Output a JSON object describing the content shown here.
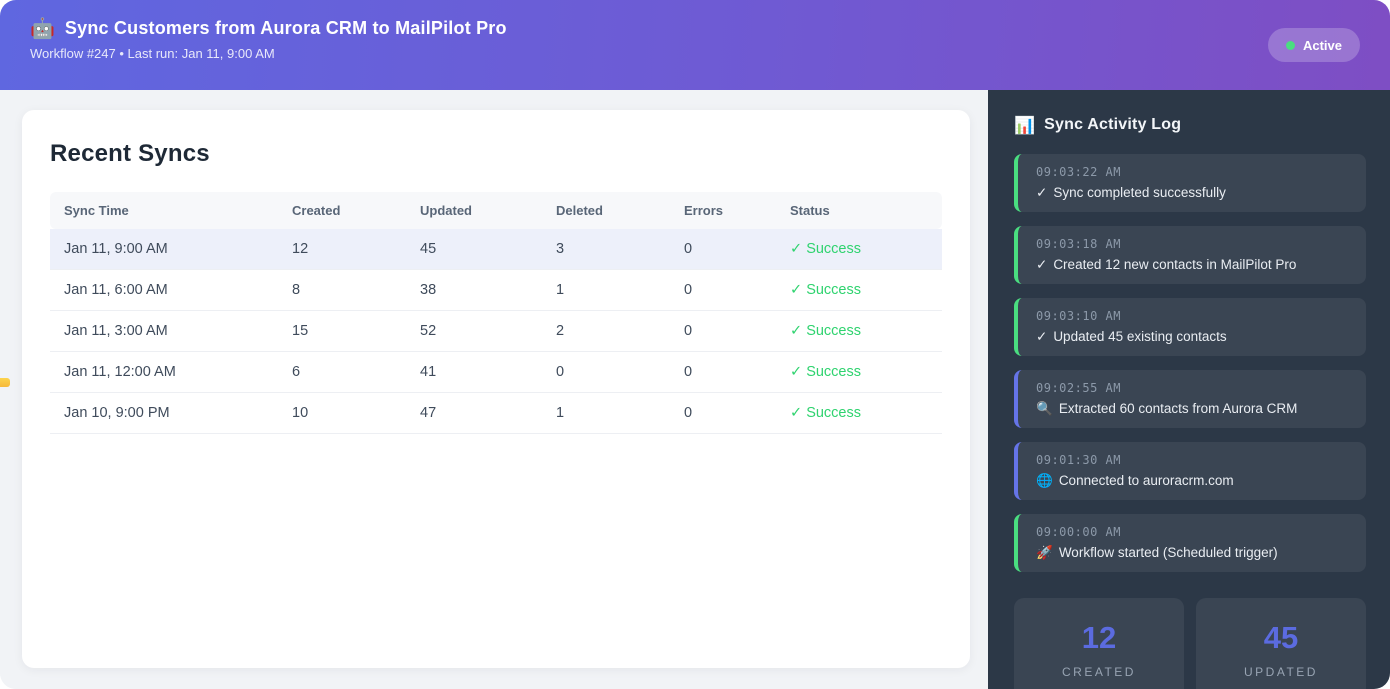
{
  "header": {
    "icon": "🤖",
    "title": "Sync Customers from Aurora CRM to MailPilot Pro",
    "subtitle": "Workflow #247 • Last run: Jan 11, 9:00 AM",
    "status_badge": "Active"
  },
  "main": {
    "heading": "Recent Syncs",
    "table": {
      "columns": [
        "Sync Time",
        "Created",
        "Updated",
        "Deleted",
        "Errors",
        "Status"
      ],
      "status_icon": "✓",
      "rows": [
        {
          "sync_time": "Jan 11, 9:00 AM",
          "created": "12",
          "updated": "45",
          "deleted": "3",
          "errors": "0",
          "status_icon": "✓",
          "status": "Success"
        },
        {
          "sync_time": "Jan 11, 6:00 AM",
          "created": "8",
          "updated": "38",
          "deleted": "1",
          "errors": "0",
          "status_icon": "✓",
          "status": "Success"
        },
        {
          "sync_time": "Jan 11, 3:00 AM",
          "created": "15",
          "updated": "52",
          "deleted": "2",
          "errors": "0",
          "status_icon": "✓",
          "status": "Success"
        },
        {
          "sync_time": "Jan 11, 12:00 AM",
          "created": "6",
          "updated": "41",
          "deleted": "0",
          "errors": "0",
          "status_icon": "✓",
          "status": "Success"
        },
        {
          "sync_time": "Jan 10, 9:00 PM",
          "created": "10",
          "updated": "47",
          "deleted": "1",
          "errors": "0",
          "status_icon": "✓",
          "status": "Success"
        }
      ]
    }
  },
  "sidebar": {
    "icon": "📊",
    "title": "Sync Activity Log",
    "log_entries": [
      {
        "time": "09:03:22 AM",
        "icon": "✓",
        "message": "Sync completed successfully",
        "accent": "green"
      },
      {
        "time": "09:03:18 AM",
        "icon": "✓",
        "message": "Created 12 new contacts in MailPilot Pro",
        "accent": "green"
      },
      {
        "time": "09:03:10 AM",
        "icon": "✓",
        "message": "Updated 45 existing contacts",
        "accent": "green"
      },
      {
        "time": "09:02:55 AM",
        "icon": "🔍",
        "message": "Extracted 60 contacts from Aurora CRM",
        "accent": "indigo"
      },
      {
        "time": "09:01:30 AM",
        "icon": "🌐",
        "message": "Connected to auroracrm.com",
        "accent": "indigo"
      },
      {
        "time": "09:00:00 AM",
        "icon": "🚀",
        "message": "Workflow started (Scheduled trigger)",
        "accent": "green"
      }
    ],
    "stats": [
      {
        "value": "12",
        "label": "CREATED"
      },
      {
        "value": "45",
        "label": "UPDATED"
      }
    ]
  },
  "colors": {
    "header_gradient_start": "#5f67e0",
    "header_gradient_end": "#7e4ec4",
    "active_dot": "#4ade80",
    "success_green": "#2fd36f",
    "log_accent_green": "#4ade80",
    "log_accent_indigo": "#6574e8",
    "sidebar_bg": "#2c3847",
    "sidebar_card_bg": "#3a4553",
    "row_highlight": "#edf0fa",
    "stat_number": "#5b6be0"
  }
}
